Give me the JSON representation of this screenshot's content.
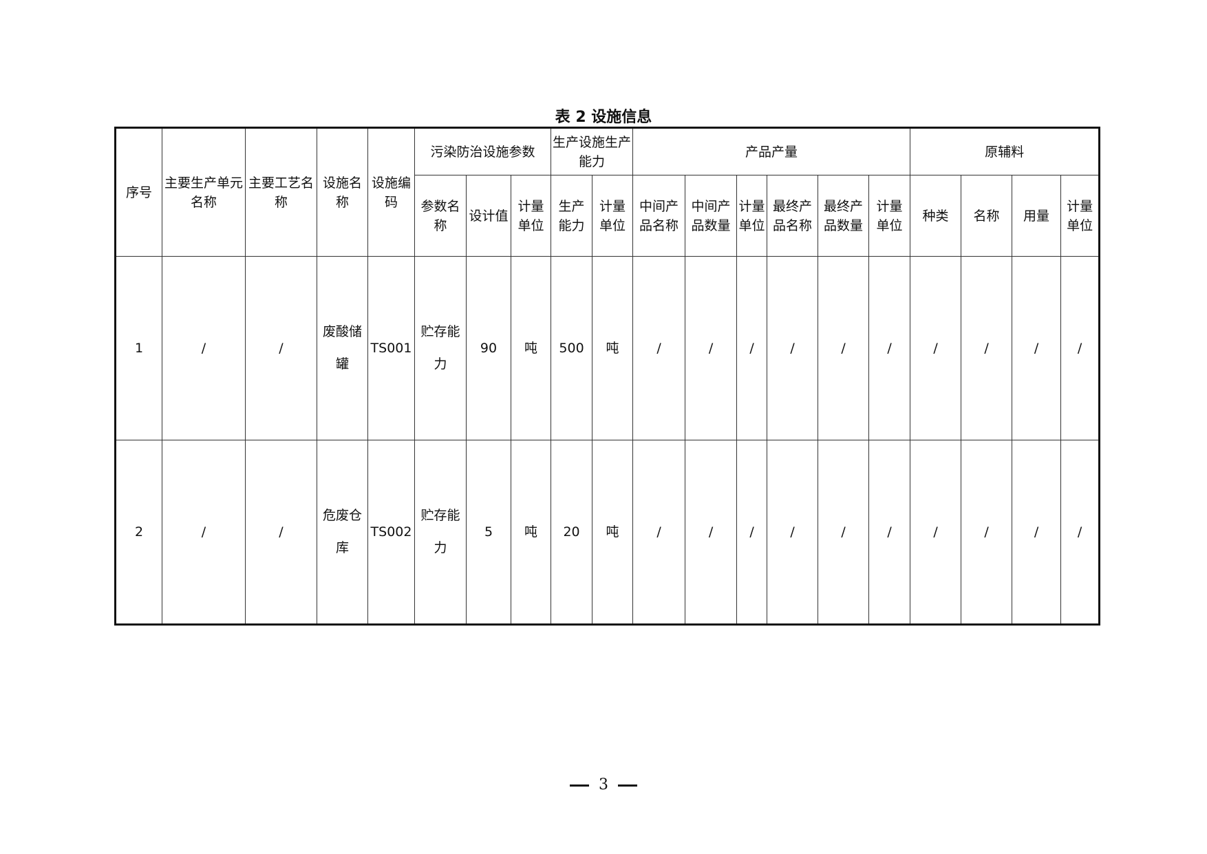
{
  "title": "表 2 设施信息",
  "header": {
    "seq": "序号",
    "unit": "主要生产单元名称",
    "process": "主要工艺名称",
    "facility_name": "设施名称",
    "facility_code": "设施编码",
    "pollution_group": "污染防治设施参数",
    "capacity_group": "生产设施生产能力",
    "product_group": "产品产量",
    "material_group": "原辅料",
    "sub": [
      "参数名称",
      "设计值",
      "计量单位",
      "生产能力",
      "计量单位",
      "中间产品名称",
      "中间产品数量",
      "计量单位",
      "最终产品名称",
      "最终产品数量",
      "计量单位",
      "种类",
      "名称",
      "用量",
      "计量单位"
    ]
  },
  "rows": [
    [
      "1",
      "/",
      "/",
      "废酸储罐",
      "TS001",
      "贮存能力",
      "90",
      "吨",
      "500",
      "吨",
      "/",
      "/",
      "/",
      "/",
      "/",
      "/",
      "/",
      "/",
      "/",
      "/"
    ],
    [
      "2",
      "/",
      "/",
      "危废仓库",
      "TS002",
      "贮存能力",
      "5",
      "吨",
      "20",
      "吨",
      "/",
      "/",
      "/",
      "/",
      "/",
      "/",
      "/",
      "/",
      "/",
      "/"
    ]
  ],
  "page_number": "3"
}
